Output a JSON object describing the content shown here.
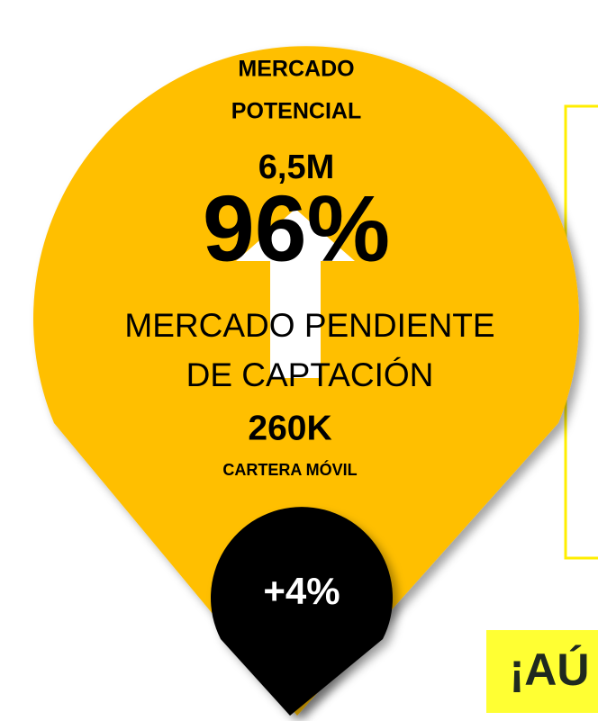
{
  "pin": {
    "heading": [
      "MERCADO",
      "POTENCIAL"
    ],
    "market": "6,5M",
    "share": "96%",
    "pending": [
      "MERCADO PENDIENTE",
      "DE CAPTACIÓN"
    ],
    "portfolio": "260K",
    "portfolio_label": "CARTERA MÓVIL",
    "growth": "+4%"
  },
  "footer": {
    "text": "¡AÚ"
  }
}
